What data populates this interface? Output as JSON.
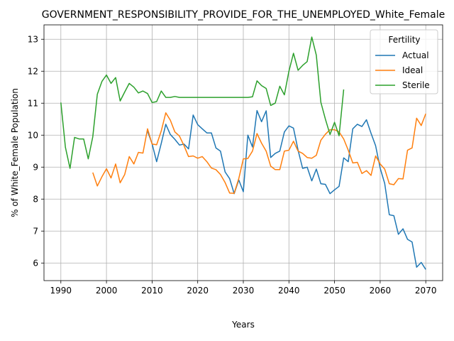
{
  "chart_data": {
    "type": "line",
    "title": "GOVERNMENT_RESPONSIBILITY_PROVIDE_FOR_THE_UNEMPLOYED_White_Female",
    "xlabel": "Years",
    "ylabel": "% of White_Female Population",
    "xlim": [
      1986.3,
      2073.7
    ],
    "ylim": [
      5.45,
      13.45
    ],
    "xticks": [
      1990,
      2000,
      2010,
      2020,
      2030,
      2040,
      2050,
      2060,
      2070
    ],
    "yticks": [
      6,
      7,
      8,
      9,
      10,
      11,
      12,
      13
    ],
    "grid": true,
    "legend": {
      "title": "Fertility",
      "position": "upper-right"
    },
    "series": [
      {
        "name": "Actual",
        "color": "#1f77b4",
        "points": [
          [
            2009,
            10.12
          ],
          [
            2010,
            9.73
          ],
          [
            2011,
            9.17
          ],
          [
            2012,
            9.74
          ],
          [
            2013,
            10.34
          ],
          [
            2014,
            10.02
          ],
          [
            2015,
            9.87
          ],
          [
            2016,
            9.69
          ],
          [
            2017,
            9.72
          ],
          [
            2018,
            9.57
          ],
          [
            2019,
            10.63
          ],
          [
            2020,
            10.33
          ],
          [
            2021,
            10.2
          ],
          [
            2022,
            10.07
          ],
          [
            2023,
            10.07
          ],
          [
            2024,
            9.6
          ],
          [
            2025,
            9.5
          ],
          [
            2026,
            8.85
          ],
          [
            2027,
            8.64
          ],
          [
            2028,
            8.17
          ],
          [
            2029,
            8.6
          ],
          [
            2030,
            8.23
          ],
          [
            2031,
            10.0
          ],
          [
            2032,
            9.63
          ],
          [
            2033,
            10.77
          ],
          [
            2034,
            10.42
          ],
          [
            2035,
            10.76
          ],
          [
            2036,
            9.3
          ],
          [
            2037,
            9.43
          ],
          [
            2038,
            9.5
          ],
          [
            2039,
            10.1
          ],
          [
            2040,
            10.29
          ],
          [
            2041,
            10.22
          ],
          [
            2042,
            9.53
          ],
          [
            2043,
            8.96
          ],
          [
            2044,
            9.0
          ],
          [
            2045,
            8.57
          ],
          [
            2046,
            8.94
          ],
          [
            2047,
            8.48
          ],
          [
            2048,
            8.46
          ],
          [
            2049,
            8.17
          ],
          [
            2050,
            8.29
          ],
          [
            2051,
            8.4
          ],
          [
            2052,
            9.29
          ],
          [
            2053,
            9.17
          ],
          [
            2054,
            10.2
          ],
          [
            2055,
            10.34
          ],
          [
            2056,
            10.27
          ],
          [
            2057,
            10.48
          ],
          [
            2058,
            10.06
          ],
          [
            2059,
            9.67
          ],
          [
            2060,
            8.97
          ],
          [
            2061,
            8.49
          ],
          [
            2062,
            7.51
          ],
          [
            2063,
            7.48
          ],
          [
            2064,
            6.9
          ],
          [
            2065,
            7.07
          ],
          [
            2066,
            6.74
          ],
          [
            2067,
            6.66
          ],
          [
            2068,
            5.87
          ],
          [
            2069,
            6.02
          ],
          [
            2070,
            5.8
          ]
        ]
      },
      {
        "name": "Ideal",
        "color": "#ff7f0e",
        "points": [
          [
            1997,
            8.83
          ],
          [
            1998,
            8.41
          ],
          [
            1999,
            8.7
          ],
          [
            2000,
            8.95
          ],
          [
            2001,
            8.66
          ],
          [
            2002,
            9.1
          ],
          [
            2003,
            8.51
          ],
          [
            2004,
            8.77
          ],
          [
            2005,
            9.33
          ],
          [
            2006,
            9.1
          ],
          [
            2007,
            9.46
          ],
          [
            2008,
            9.44
          ],
          [
            2009,
            10.2
          ],
          [
            2010,
            9.72
          ],
          [
            2011,
            9.7
          ],
          [
            2012,
            10.13
          ],
          [
            2013,
            10.7
          ],
          [
            2014,
            10.47
          ],
          [
            2015,
            10.1
          ],
          [
            2016,
            9.97
          ],
          [
            2017,
            9.67
          ],
          [
            2018,
            9.33
          ],
          [
            2019,
            9.35
          ],
          [
            2020,
            9.28
          ],
          [
            2021,
            9.33
          ],
          [
            2022,
            9.17
          ],
          [
            2023,
            8.97
          ],
          [
            2024,
            8.92
          ],
          [
            2025,
            8.77
          ],
          [
            2026,
            8.52
          ],
          [
            2027,
            8.19
          ],
          [
            2028,
            8.18
          ],
          [
            2029,
            8.64
          ],
          [
            2030,
            9.26
          ],
          [
            2031,
            9.27
          ],
          [
            2032,
            9.5
          ],
          [
            2033,
            10.05
          ],
          [
            2034,
            9.75
          ],
          [
            2035,
            9.5
          ],
          [
            2036,
            9.03
          ],
          [
            2037,
            8.92
          ],
          [
            2038,
            8.92
          ],
          [
            2039,
            9.5
          ],
          [
            2040,
            9.53
          ],
          [
            2041,
            9.81
          ],
          [
            2042,
            9.5
          ],
          [
            2043,
            9.43
          ],
          [
            2044,
            9.3
          ],
          [
            2045,
            9.28
          ],
          [
            2046,
            9.37
          ],
          [
            2047,
            9.84
          ],
          [
            2048,
            10.03
          ],
          [
            2049,
            10.17
          ],
          [
            2050,
            10.17
          ],
          [
            2051,
            10.1
          ],
          [
            2052,
            9.88
          ],
          [
            2053,
            9.53
          ],
          [
            2054,
            9.13
          ],
          [
            2055,
            9.15
          ],
          [
            2056,
            8.8
          ],
          [
            2057,
            8.89
          ],
          [
            2058,
            8.74
          ],
          [
            2059,
            9.35
          ],
          [
            2060,
            9.1
          ],
          [
            2061,
            8.94
          ],
          [
            2062,
            8.48
          ],
          [
            2063,
            8.45
          ],
          [
            2064,
            8.64
          ],
          [
            2065,
            8.63
          ],
          [
            2066,
            9.53
          ],
          [
            2067,
            9.6
          ],
          [
            2068,
            10.53
          ],
          [
            2069,
            10.3
          ],
          [
            2070,
            10.67
          ]
        ]
      },
      {
        "name": "Sterile",
        "color": "#2ca02c",
        "points": [
          [
            1990,
            11.02
          ],
          [
            1991,
            9.62
          ],
          [
            1992,
            8.96
          ],
          [
            1993,
            9.93
          ],
          [
            1994,
            9.88
          ],
          [
            1995,
            9.88
          ],
          [
            1996,
            9.26
          ],
          [
            1997,
            9.95
          ],
          [
            1998,
            11.28
          ],
          [
            1999,
            11.68
          ],
          [
            2000,
            11.88
          ],
          [
            2001,
            11.62
          ],
          [
            2002,
            11.8
          ],
          [
            2003,
            11.07
          ],
          [
            2004,
            11.35
          ],
          [
            2005,
            11.62
          ],
          [
            2006,
            11.5
          ],
          [
            2007,
            11.32
          ],
          [
            2008,
            11.38
          ],
          [
            2009,
            11.3
          ],
          [
            2010,
            11.02
          ],
          [
            2011,
            11.05
          ],
          [
            2012,
            11.38
          ],
          [
            2013,
            11.18
          ],
          [
            2014,
            11.18
          ],
          [
            2015,
            11.21
          ],
          [
            2016,
            11.18
          ],
          [
            2017,
            11.18
          ],
          [
            2018,
            11.18
          ],
          [
            2019,
            11.18
          ],
          [
            2020,
            11.18
          ],
          [
            2021,
            11.18
          ],
          [
            2022,
            11.18
          ],
          [
            2023,
            11.18
          ],
          [
            2024,
            11.18
          ],
          [
            2025,
            11.18
          ],
          [
            2026,
            11.18
          ],
          [
            2027,
            11.18
          ],
          [
            2028,
            11.18
          ],
          [
            2029,
            11.18
          ],
          [
            2030,
            11.18
          ],
          [
            2031,
            11.18
          ],
          [
            2032,
            11.2
          ],
          [
            2033,
            11.7
          ],
          [
            2034,
            11.55
          ],
          [
            2035,
            11.46
          ],
          [
            2036,
            10.93
          ],
          [
            2037,
            11.0
          ],
          [
            2038,
            11.53
          ],
          [
            2039,
            11.26
          ],
          [
            2040,
            12.0
          ],
          [
            2041,
            12.56
          ],
          [
            2042,
            12.03
          ],
          [
            2043,
            12.18
          ],
          [
            2044,
            12.3
          ],
          [
            2045,
            13.07
          ],
          [
            2046,
            12.5
          ],
          [
            2047,
            11.03
          ],
          [
            2048,
            10.5
          ],
          [
            2049,
            10.02
          ],
          [
            2050,
            10.4
          ],
          [
            2051,
            9.98
          ],
          [
            2052,
            11.43
          ]
        ]
      }
    ]
  }
}
